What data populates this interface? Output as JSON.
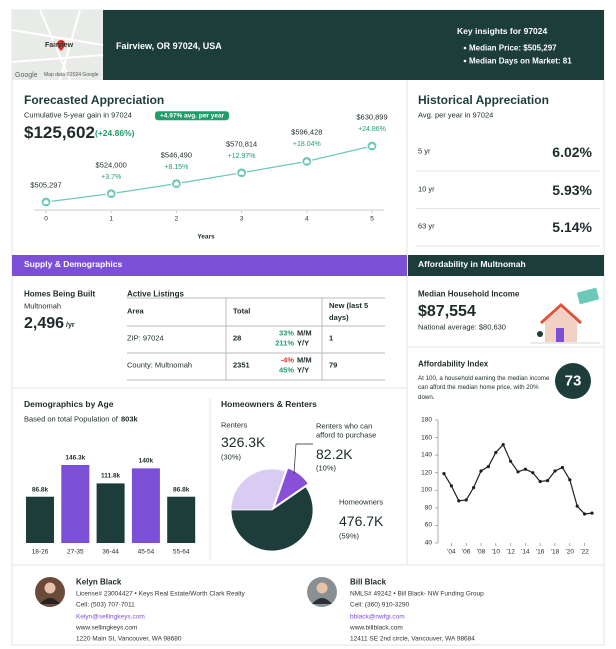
{
  "header": {
    "map_label": "Fairview",
    "google": "Google",
    "map_footer": "Map data ©2024 Google",
    "location": "Fairview, OR 97024, USA",
    "insights_title": "Key insights for 97024",
    "insights": [
      "Median Price: $505,297",
      "Median Days on Market: 81"
    ]
  },
  "forecast": {
    "title": "Forecasted Appreciation",
    "subtitle": "Cumulative 5-year gain in 97024",
    "badge": "+4.97% avg. per year",
    "value": "$125,602",
    "change": "(+24.86%)",
    "x": [
      0,
      1,
      2,
      3,
      4,
      5
    ],
    "values": [
      505297,
      524000,
      546490,
      570814,
      596428,
      630899
    ],
    "value_labels": [
      "$505,297",
      "$524,000",
      "$546,490",
      "$570,814",
      "$596,428",
      "$630,899"
    ],
    "changes": [
      null,
      "+3.7%",
      "+8.15%",
      "+12.97%",
      "+18.04%",
      "+24.86%"
    ],
    "xlim": [
      0,
      5
    ],
    "xticks": [
      0,
      1,
      2,
      3,
      4,
      5
    ],
    "xlabel": "Years",
    "color": "#6cc9b7"
  },
  "historical": {
    "title": "Historical Appreciation",
    "subtitle": "Avg. per year in 97024",
    "rows": [
      {
        "period": "5 yr",
        "value": "6.02%"
      },
      {
        "period": "10 yr",
        "value": "5.93%"
      },
      {
        "period": "63 yr",
        "value": "5.14%"
      }
    ]
  },
  "supply": {
    "title": "Supply & Demographics",
    "homes_built": {
      "title": "Homes Being Built",
      "area": "Multnomah",
      "value": "2,496",
      "unit": "/yr"
    },
    "listings": {
      "title": "Active Listings",
      "headers": [
        "Area",
        "Total",
        "New (last 5 days)"
      ],
      "mm_label": "M/M",
      "yy_label": "Y/Y",
      "rows": [
        {
          "area": "ZIP: 97024",
          "total": "28",
          "mm": "33%",
          "yy": "211%",
          "new": "1"
        },
        {
          "area": "County: Multnomah",
          "total": "2351",
          "mm": "-4%",
          "yy": "45%",
          "new": "79"
        }
      ]
    }
  },
  "demographics": {
    "title": "Demographics by Age",
    "subtitle": "Based on total Population of",
    "population": "803k",
    "categories": [
      "18-26",
      "27-35",
      "36-44",
      "45-54",
      "55-64"
    ],
    "values": [
      86.8,
      146.3,
      111.8,
      140,
      86.8
    ],
    "value_labels": [
      "86.8k",
      "146.3k",
      "111.8k",
      "140k",
      "86.8k"
    ],
    "colors": [
      "#1c3d3a",
      "#7b4fd6",
      "#1c3d3a",
      "#7b4fd6",
      "#1c3d3a"
    ]
  },
  "homeowners": {
    "title": "Homeowners & Renters",
    "names": [
      "Renters",
      "Renters who can afford to purchase",
      "Homeowners"
    ],
    "value_labels": [
      "326.3K",
      "82.2K",
      "476.7K"
    ],
    "percent": [
      30,
      10,
      59
    ],
    "percent_labels": [
      "(30%)",
      "(10%)",
      "(59%)"
    ],
    "colors": [
      "#d9ccf2",
      "#8a4fd8",
      "#1c3d3a"
    ]
  },
  "affordability": {
    "title": "Affordability in Multnomah",
    "income_title": "Median Household Income",
    "income": "$87,554",
    "national": "National average: $80,630",
    "index_title": "Affordability Index",
    "index_text": "At 100, a household earning the median income can afford the median home price, with 20% down.",
    "index_value": "73",
    "chart": {
      "type": "line",
      "x": [
        2003,
        2004,
        2005,
        2006,
        2007,
        2008,
        2009,
        2010,
        2011,
        2012,
        2013,
        2014,
        2015,
        2016,
        2017,
        2018,
        2019,
        2020,
        2021,
        2022,
        2023
      ],
      "values": [
        119,
        105,
        88,
        89,
        103,
        122,
        127,
        143,
        152,
        133,
        121,
        124,
        120,
        110,
        111,
        122,
        126,
        112,
        82,
        73,
        74
      ],
      "xlim": [
        2003,
        2023
      ],
      "xticks": [
        {
          "value": 2004,
          "label": "'04"
        },
        {
          "value": 2006,
          "label": "'06"
        },
        {
          "value": 2008,
          "label": "'08"
        },
        {
          "value": 2010,
          "label": "'10"
        },
        {
          "value": 2012,
          "label": "'12"
        },
        {
          "value": 2014,
          "label": "'14"
        },
        {
          "value": 2016,
          "label": "'16"
        },
        {
          "value": 2018,
          "label": "'18"
        },
        {
          "value": 2020,
          "label": "'20"
        },
        {
          "value": 2022,
          "label": "'22"
        }
      ],
      "ylim": [
        40,
        180
      ],
      "yticks": [
        40,
        60,
        80,
        100,
        120,
        140,
        160,
        180
      ],
      "color": "#1f1f1f"
    }
  },
  "agents": [
    {
      "name": "Kelyn Black",
      "lines": [
        "License# 23004427 • Keys Real Estate/Worth Clark Realty",
        "Cell: (503) 707-7011",
        "Kelyn@sellingkeys.com",
        "www.sellingkeys.com",
        "1220 Main St, Vancouver, WA 98680"
      ]
    },
    {
      "name": "Bill Black",
      "lines": [
        "NMLS# 49242 • Bill Black- NW Funding Group",
        "Cell: (360) 910-3290",
        "bblack@nwfgi.com",
        "www.billblack.com",
        "12411 SE 2nd circle, Vancouver, WA 98684"
      ]
    }
  ]
}
